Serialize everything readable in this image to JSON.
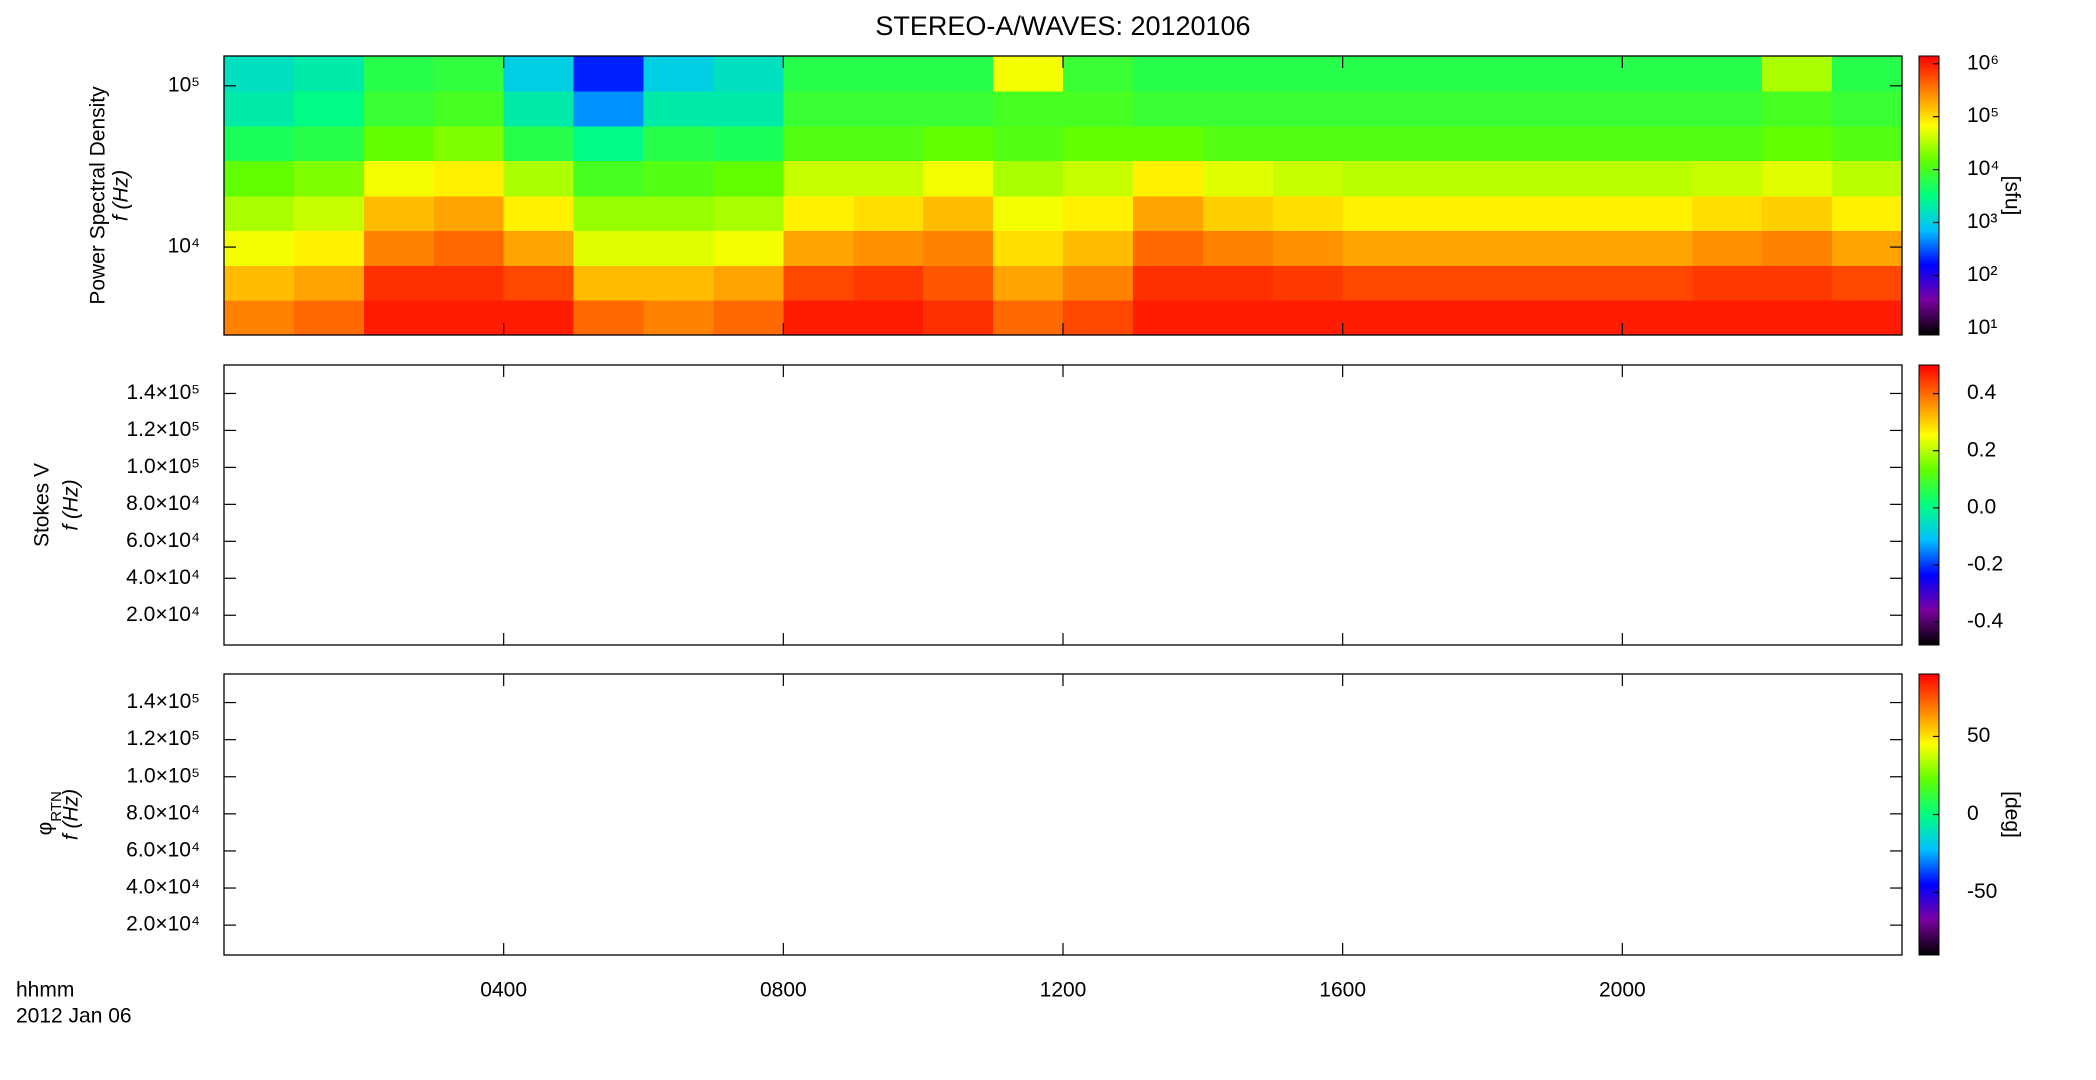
{
  "title": "STEREO-A/WAVES: 20120106",
  "x_axis": {
    "label": "hhmm",
    "date": "2012 Jan 06",
    "xlim": [
      0,
      24
    ],
    "xticks": [
      {
        "value": 4,
        "label": "0400"
      },
      {
        "value": 8,
        "label": "0800"
      },
      {
        "value": 12,
        "label": "1200"
      },
      {
        "value": 16,
        "label": "1600"
      },
      {
        "value": 20,
        "label": "2000"
      }
    ]
  },
  "chart_data": [
    {
      "type": "heatmap",
      "ylabel": "Power Spectral Density",
      "ylabel_unit": "f (Hz)",
      "ylog": true,
      "ylim": [
        2850,
        153000
      ],
      "yticks": [
        {
          "value": 10000,
          "label": "10⁴"
        },
        {
          "value": 100000,
          "label": "10⁵"
        }
      ],
      "x_bins": [
        0,
        1,
        2,
        3,
        4,
        5,
        6,
        7,
        8,
        9,
        10,
        11,
        12,
        13,
        14,
        15,
        16,
        17,
        18,
        19,
        20,
        21,
        22,
        23,
        24
      ],
      "y_bins": [
        2850,
        4690,
        7710,
        12700,
        20800,
        34300,
        56400,
        92700,
        153000
      ],
      "z": [
        [
          300000,
          400000,
          1000000,
          1000000,
          1000000,
          400000,
          300000,
          400000,
          1000000,
          1000000,
          800000,
          400000,
          600000,
          1000000,
          1000000,
          1000000,
          1000000,
          1000000,
          1000000,
          1000000,
          1000000,
          1000000,
          1000000,
          1000000
        ],
        [
          150000,
          200000,
          800000,
          800000,
          600000,
          150000,
          150000,
          200000,
          600000,
          700000,
          500000,
          200000,
          300000,
          800000,
          800000,
          700000,
          600000,
          600000,
          600000,
          600000,
          600000,
          700000,
          700000,
          600000
        ],
        [
          60000,
          80000,
          300000,
          400000,
          200000,
          50000,
          50000,
          60000,
          200000,
          250000,
          300000,
          100000,
          150000,
          400000,
          300000,
          250000,
          200000,
          200000,
          200000,
          200000,
          200000,
          250000,
          300000,
          200000
        ],
        [
          30000,
          40000,
          150000,
          200000,
          80000,
          25000,
          25000,
          30000,
          80000,
          100000,
          150000,
          60000,
          80000,
          200000,
          120000,
          100000,
          80000,
          80000,
          80000,
          80000,
          80000,
          100000,
          120000,
          80000
        ],
        [
          15000,
          20000,
          60000,
          80000,
          30000,
          10000,
          12000,
          15000,
          40000,
          40000,
          60000,
          30000,
          40000,
          80000,
          50000,
          40000,
          35000,
          35000,
          35000,
          35000,
          35000,
          40000,
          50000,
          35000
        ],
        [
          5000,
          6000,
          15000,
          20000,
          6000,
          3000,
          6000,
          5000,
          12000,
          12000,
          15000,
          12000,
          15000,
          15000,
          12000,
          12000,
          12000,
          12000,
          12000,
          12000,
          12000,
          12000,
          15000,
          12000
        ],
        [
          2000,
          3000,
          8000,
          10000,
          2000,
          500,
          2000,
          2000,
          8000,
          8000,
          8000,
          10000,
          10000,
          8000,
          8000,
          8000,
          8000,
          8000,
          8000,
          8000,
          8000,
          8000,
          10000,
          8000
        ],
        [
          1500,
          2000,
          6000,
          7000,
          1000,
          200,
          1000,
          1500,
          6000,
          6000,
          6000,
          60000,
          8000,
          6000,
          6000,
          6000,
          6000,
          6000,
          6000,
          6000,
          6000,
          6000,
          30000,
          6000
        ]
      ],
      "clog": true,
      "clim": [
        7.5,
        1400000
      ],
      "clabel": "[sfu]",
      "cticks": [
        {
          "value": 10,
          "label": "10¹"
        },
        {
          "value": 100,
          "label": "10²"
        },
        {
          "value": 1000,
          "label": "10³"
        },
        {
          "value": 10000,
          "label": "10⁴"
        },
        {
          "value": 100000,
          "label": "10⁵"
        },
        {
          "value": 1000000,
          "label": "10⁶"
        }
      ],
      "colormap": [
        "#000000",
        "#7b00a0",
        "#0000ff",
        "#00c0ff",
        "#00ff80",
        "#60ff00",
        "#ffff00",
        "#ff8000",
        "#ff0000"
      ]
    },
    {
      "type": "heatmap",
      "ylabel": "Stokes V",
      "ylabel_unit": "f (Hz)",
      "ylog": false,
      "ylim": [
        3900,
        155400
      ],
      "yticks": [
        {
          "value": 20000,
          "label": "2.0×10⁴"
        },
        {
          "value": 40000,
          "label": "4.0×10⁴"
        },
        {
          "value": 60000,
          "label": "6.0×10⁴"
        },
        {
          "value": 80000,
          "label": "8.0×10⁴"
        },
        {
          "value": 100000,
          "label": "1.0×10⁵"
        },
        {
          "value": 120000,
          "label": "1.2×10⁵"
        },
        {
          "value": 140000,
          "label": "1.4×10⁵"
        }
      ],
      "clog": false,
      "clim": [
        -0.48,
        0.5
      ],
      "cticks": [
        -0.4,
        -0.2,
        {
          "value": 0,
          "label": "0.0"
        },
        0.2,
        0.4
      ],
      "colormap": [
        "#000000",
        "#7b00a0",
        "#0000ff",
        "#00c0ff",
        "#00ff80",
        "#60ff00",
        "#ffff00",
        "#ff8000",
        "#ff0000"
      ]
    },
    {
      "type": "heatmap",
      "ylabel_symbol": "φ",
      "ylabel_subscript": "RTN",
      "ylabel_unit": "f (Hz)",
      "ylog": false,
      "ylim": [
        3900,
        155400
      ],
      "yticks": [
        {
          "value": 20000,
          "label": "2.0×10⁴"
        },
        {
          "value": 40000,
          "label": "4.0×10⁴"
        },
        {
          "value": 60000,
          "label": "6.0×10⁴"
        },
        {
          "value": 80000,
          "label": "8.0×10⁴"
        },
        {
          "value": 100000,
          "label": "1.0×10⁵"
        },
        {
          "value": 120000,
          "label": "1.2×10⁵"
        },
        {
          "value": 140000,
          "label": "1.4×10⁵"
        }
      ],
      "clog": false,
      "clim": [
        -90,
        90
      ],
      "clabel": "[deg]",
      "cticks": [
        -50,
        0,
        50
      ],
      "colormap": [
        "#000000",
        "#7b00a0",
        "#0000ff",
        "#00c0ff",
        "#00ff80",
        "#60ff00",
        "#ffff00",
        "#ff8000",
        "#ff0000"
      ]
    }
  ]
}
